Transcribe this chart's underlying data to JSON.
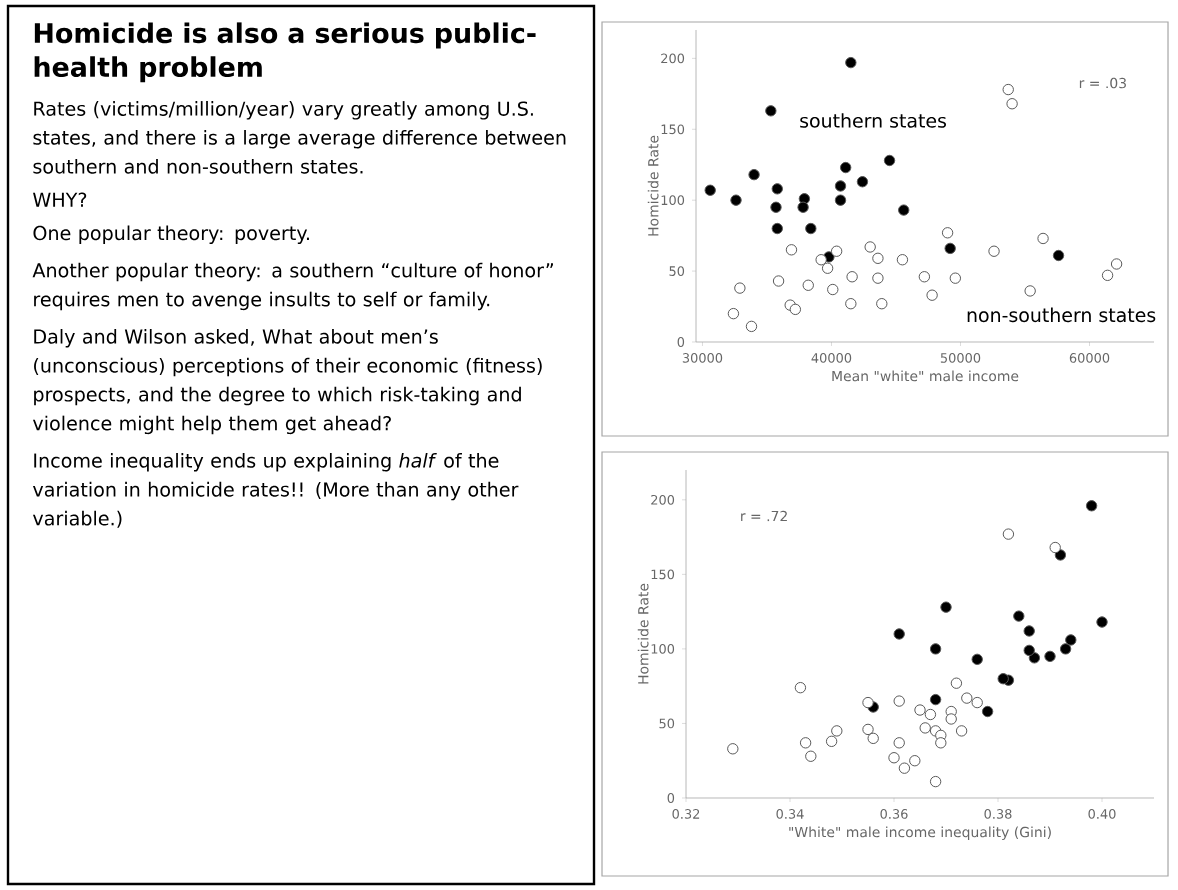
{
  "chart_data": [
    {
      "type": "other",
      "title": "Homicide is also a serious public-health problem",
      "annotations": [
        "Rates (victims/million/year) vary greatly among U.S. states, and there is a large average difference between southern and non-southern states.",
        "WHY?",
        "One popular theory: poverty.",
        "Another popular theory: a southern “culture of honor” requires men to avenge insults to self or family.",
        "Daly and Wilson asked, What about men’s (unconscious) perceptions of their economic (fitness) prospects, and the degree to which risk-taking and violence might help them get ahead?",
        "Income inequality ends up explaining *half* of the variation in homicide rates!! (More than any other variable.)"
      ]
    },
    {
      "type": "scatter",
      "xlabel": "Mean \"white\" male income",
      "ylabel": "Homicide Rate",
      "marker": "circle",
      "xlim": [
        29500,
        65000
      ],
      "ylim": [
        0,
        220
      ],
      "xticks": [
        30000,
        40000,
        50000,
        60000
      ],
      "yticks": [
        0,
        50,
        100,
        150,
        200
      ],
      "annotations": [
        "r = .03"
      ],
      "series": [
        {
          "name": "southern states",
          "color": "#000000",
          "x": [
            30600,
            32600,
            34000,
            35300,
            35800,
            35700,
            35800,
            37900,
            37800,
            38400,
            41500,
            41100,
            40700,
            40700,
            42400,
            44500,
            45600,
            49200,
            57600,
            39800
          ],
          "values": [
            107,
            100,
            118,
            163,
            108,
            95,
            80,
            101,
            95,
            80,
            197,
            123,
            110,
            100,
            113,
            128,
            93,
            66,
            61,
            60
          ]
        },
        {
          "name": "non-southern states",
          "color": "#ffffff",
          "x": [
            32400,
            32900,
            33800,
            35900,
            36900,
            36800,
            37200,
            38200,
            39200,
            39700,
            40100,
            40400,
            41600,
            41500,
            43000,
            43600,
            43600,
            43900,
            45500,
            47200,
            47800,
            49000,
            49600,
            52600,
            53700,
            54000,
            55400,
            56400,
            61400,
            62100
          ],
          "values": [
            20,
            38,
            11,
            43,
            65,
            26,
            23,
            40,
            58,
            52,
            37,
            64,
            46,
            27,
            67,
            59,
            45,
            27,
            58,
            46,
            33,
            77,
            45,
            64,
            178,
            168,
            36,
            73,
            47,
            55
          ]
        }
      ]
    },
    {
      "type": "scatter",
      "xlabel": "\"White\" male income inequality (Gini)",
      "ylabel": "Homicide Rate",
      "marker": "circle",
      "xlim": [
        0.32,
        0.41
      ],
      "ylim": [
        0,
        220
      ],
      "xticks": [
        {
          "value": 0.32,
          "label": "0.32"
        },
        {
          "value": 0.34,
          "label": "0.34"
        },
        {
          "value": 0.36,
          "label": "0.36"
        },
        {
          "value": 0.38,
          "label": "0.38"
        },
        {
          "value": 0.4,
          "label": "0.40"
        }
      ],
      "yticks": [
        0,
        50,
        100,
        150,
        200
      ],
      "annotations": [
        "r = .72"
      ],
      "series": [
        {
          "color": "#000000",
          "x": [
            0.4,
            0.398,
            0.392,
            0.394,
            0.393,
            0.39,
            0.387,
            0.386,
            0.386,
            0.384,
            0.382,
            0.381,
            0.378,
            0.376,
            0.37,
            0.368,
            0.368,
            0.361,
            0.356
          ],
          "values": [
            118,
            196,
            163,
            106,
            100,
            95,
            94,
            99,
            112,
            122,
            79,
            80,
            58,
            93,
            128,
            100,
            66,
            110,
            61
          ]
        },
        {
          "color": "#ffffff",
          "x": [
            0.329,
            0.342,
            0.343,
            0.344,
            0.348,
            0.349,
            0.355,
            0.355,
            0.356,
            0.36,
            0.361,
            0.361,
            0.362,
            0.364,
            0.365,
            0.366,
            0.367,
            0.368,
            0.368,
            0.369,
            0.369,
            0.371,
            0.371,
            0.372,
            0.374,
            0.376,
            0.373,
            0.382,
            0.391
          ],
          "values": [
            33,
            74,
            37,
            28,
            38,
            45,
            64,
            46,
            40,
            27,
            65,
            37,
            20,
            25,
            59,
            47,
            56,
            45,
            11,
            42,
            37,
            58,
            53,
            77,
            67,
            64,
            45,
            177,
            168
          ]
        }
      ]
    }
  ]
}
